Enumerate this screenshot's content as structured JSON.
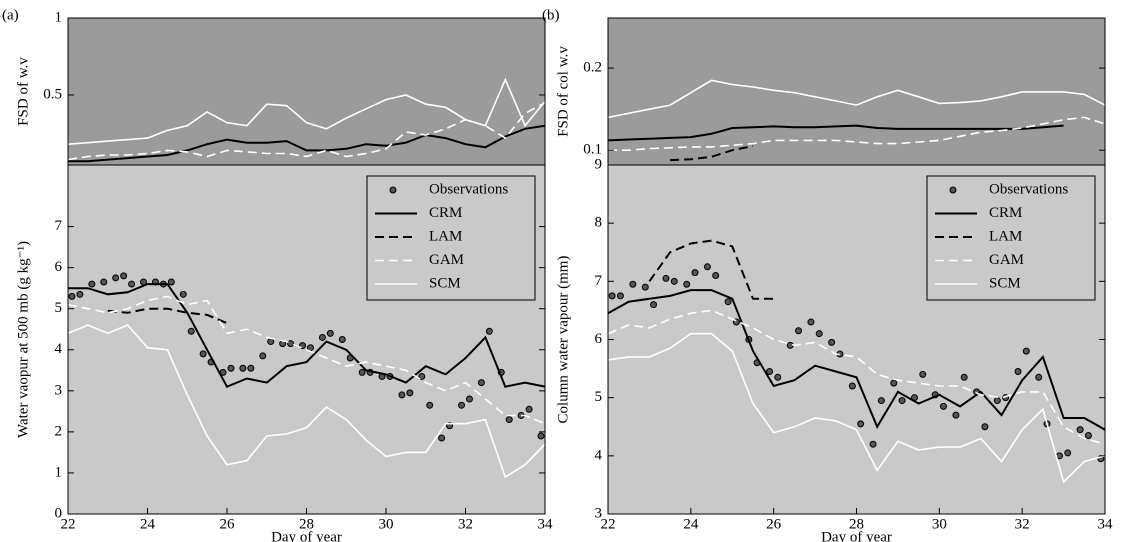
{
  "chart_data": [
    {
      "type": "line",
      "panel_label": "(a)",
      "ylabel": "FSD of w.v",
      "xlim": [
        22,
        34
      ],
      "ylim": [
        0.045,
        1
      ],
      "yticks": [
        0.5,
        1
      ],
      "background": "#9b9b9b",
      "x": [
        22,
        22.5,
        23,
        23.5,
        24,
        24.5,
        25,
        25.5,
        26,
        26.5,
        27,
        27.5,
        28,
        28.5,
        29,
        29.5,
        30,
        30.5,
        31,
        31.5,
        32,
        32.5,
        33,
        33.5,
        34
      ],
      "series": [
        {
          "color": "#000000",
          "dash": false,
          "values": [
            0.07,
            0.07,
            0.08,
            0.09,
            0.1,
            0.11,
            0.14,
            0.18,
            0.21,
            0.19,
            0.19,
            0.2,
            0.14,
            0.14,
            0.15,
            0.18,
            0.17,
            0.19,
            0.24,
            0.22,
            0.18,
            0.16,
            0.23,
            0.28,
            0.3
          ]
        },
        {
          "color": "#ffffff",
          "dash": true,
          "values": [
            0.08,
            0.1,
            0.11,
            0.11,
            0.12,
            0.14,
            0.13,
            0.1,
            0.14,
            0.13,
            0.12,
            0.12,
            0.1,
            0.14,
            0.1,
            0.12,
            0.15,
            0.26,
            0.24,
            0.28,
            0.34,
            0.3,
            0.22,
            0.38,
            0.45
          ]
        },
        {
          "color": "#ffffff",
          "dash": false,
          "values": [
            0.18,
            0.19,
            0.2,
            0.21,
            0.22,
            0.27,
            0.3,
            0.39,
            0.32,
            0.3,
            0.44,
            0.43,
            0.32,
            0.28,
            0.35,
            0.41,
            0.47,
            0.5,
            0.44,
            0.42,
            0.34,
            0.3,
            0.6,
            0.3,
            0.46
          ]
        }
      ]
    },
    {
      "type": "line",
      "ylabel": "Water vaopur at 500 mb (g kg⁻¹)",
      "xlabel": "Day of year",
      "xlim": [
        22,
        34
      ],
      "xticks": [
        22,
        24,
        26,
        28,
        30,
        32,
        34
      ],
      "ylim": [
        0,
        8.5
      ],
      "yticks": [
        0,
        1,
        2,
        3,
        4,
        5,
        6,
        7
      ],
      "background": "#c9c9c9",
      "legend": "upper right",
      "x": [
        22,
        22.5,
        23,
        23.5,
        24,
        24.5,
        25,
        25.5,
        26,
        26.5,
        27,
        27.5,
        28,
        28.5,
        29,
        29.5,
        30,
        30.5,
        31,
        31.5,
        32,
        32.5,
        33,
        33.5,
        34
      ],
      "series": [
        {
          "name": "Observations",
          "color": "#555555",
          "marker": "dot",
          "x": [
            22.1,
            22.3,
            22.6,
            22.9,
            23.2,
            23.4,
            23.6,
            23.9,
            24.2,
            24.4,
            24.6,
            24.9,
            25.1,
            25.4,
            25.6,
            25.9,
            26.1,
            26.4,
            26.6,
            26.9,
            27.1,
            27.4,
            27.6,
            27.9,
            28.1,
            28.4,
            28.6,
            28.9,
            29.1,
            29.4,
            29.6,
            29.9,
            30.1,
            30.4,
            30.6,
            30.9,
            31.1,
            31.4,
            31.6,
            31.9,
            32.1,
            32.4,
            32.6,
            32.9,
            33.1,
            33.4,
            33.6,
            33.9
          ],
          "values": [
            5.3,
            5.35,
            5.6,
            5.65,
            5.75,
            5.8,
            5.6,
            5.65,
            5.65,
            5.6,
            5.65,
            5.35,
            4.45,
            3.9,
            3.7,
            3.45,
            3.55,
            3.55,
            3.55,
            3.85,
            4.2,
            4.15,
            4.15,
            4.1,
            4.05,
            4.3,
            4.4,
            4.25,
            3.8,
            3.45,
            3.45,
            3.35,
            3.35,
            2.9,
            2.95,
            3.35,
            2.65,
            1.85,
            2.15,
            2.65,
            2.8,
            3.2,
            4.45,
            3.45,
            2.3,
            2.4,
            2.55,
            1.9
          ]
        },
        {
          "name": "CRM",
          "color": "#000000",
          "dash": false,
          "values": [
            5.5,
            5.5,
            5.35,
            5.4,
            5.6,
            5.6,
            4.9,
            4.0,
            3.1,
            3.3,
            3.2,
            3.6,
            3.7,
            4.2,
            4.0,
            3.5,
            3.4,
            3.2,
            3.6,
            3.4,
            3.8,
            4.3,
            3.1,
            3.2,
            3.1
          ]
        },
        {
          "name": "LAM",
          "color": "#000000",
          "dash": true,
          "values": [
            null,
            null,
            4.95,
            4.9,
            5.0,
            5.0,
            4.9,
            4.85,
            4.65,
            null,
            null,
            null,
            null,
            null,
            null,
            null,
            null,
            null,
            null,
            null,
            null,
            null,
            null,
            null,
            null
          ]
        },
        {
          "name": "GAM",
          "color": "#ffffff",
          "dash": true,
          "values": [
            5.1,
            5.0,
            4.9,
            5.0,
            5.2,
            5.3,
            5.1,
            5.2,
            4.4,
            4.5,
            4.3,
            4.2,
            4.0,
            3.8,
            3.6,
            3.7,
            3.6,
            3.5,
            3.2,
            3.0,
            3.2,
            2.8,
            2.4,
            2.4,
            2.2
          ]
        },
        {
          "name": "SCM",
          "color": "#ffffff",
          "dash": false,
          "values": [
            4.4,
            4.6,
            4.4,
            4.6,
            4.05,
            4.0,
            2.9,
            1.9,
            1.2,
            1.3,
            1.9,
            1.95,
            2.1,
            2.6,
            2.3,
            1.8,
            1.4,
            1.5,
            1.5,
            2.2,
            2.2,
            2.3,
            0.9,
            1.2,
            1.7
          ]
        }
      ]
    },
    {
      "type": "line",
      "panel_label": "(b)",
      "ylabel": "FSD of col w.v",
      "xlim": [
        22,
        34
      ],
      "ylim": [
        0.082,
        0.261
      ],
      "yticks": [
        0.1,
        0.2
      ],
      "background": "#9b9b9b",
      "x": [
        22,
        22.5,
        23,
        23.5,
        24,
        24.5,
        25,
        25.5,
        26,
        26.5,
        27,
        27.5,
        28,
        28.5,
        29,
        29.5,
        30,
        30.5,
        31,
        31.5,
        32,
        32.5,
        33,
        33.5,
        34
      ],
      "series": [
        {
          "color": "#000000",
          "dash": false,
          "values": [
            0.112,
            0.113,
            0.114,
            0.115,
            0.116,
            0.12,
            0.127,
            0.128,
            0.129,
            0.128,
            0.128,
            0.129,
            0.13,
            0.127,
            0.126,
            0.126,
            0.126,
            0.126,
            0.126,
            0.126,
            0.126,
            0.128,
            0.13,
            null,
            null
          ]
        },
        {
          "color": "#000000",
          "dash": true,
          "values": [
            null,
            null,
            null,
            0.088,
            0.089,
            0.092,
            0.1,
            0.105,
            null,
            null,
            null,
            null,
            null,
            null,
            null,
            null,
            null,
            null,
            null,
            null,
            null,
            null,
            null,
            null,
            null
          ]
        },
        {
          "color": "#ffffff",
          "dash": true,
          "values": [
            0.1,
            0.1,
            0.102,
            0.103,
            0.104,
            0.104,
            0.106,
            0.108,
            0.112,
            0.112,
            0.112,
            0.112,
            0.11,
            0.108,
            0.108,
            0.11,
            0.112,
            0.117,
            0.122,
            0.124,
            0.127,
            0.132,
            0.137,
            0.14,
            0.132
          ]
        },
        {
          "color": "#ffffff",
          "dash": false,
          "values": [
            0.14,
            0.145,
            0.15,
            0.155,
            0.17,
            0.185,
            0.18,
            0.177,
            0.173,
            0.17,
            0.165,
            0.16,
            0.155,
            0.165,
            0.173,
            0.165,
            0.157,
            0.158,
            0.16,
            0.165,
            0.171,
            0.171,
            0.171,
            0.168,
            0.155
          ]
        }
      ]
    },
    {
      "type": "line",
      "ylabel": "Column water vapour (mm)",
      "xlabel": "Day of year",
      "xlim": [
        22,
        34
      ],
      "xticks": [
        22,
        24,
        26,
        28,
        30,
        32,
        34
      ],
      "ylim": [
        3,
        9
      ],
      "yticks": [
        3,
        4,
        5,
        6,
        7,
        8,
        9
      ],
      "background": "#c9c9c9",
      "legend": "upper right",
      "x": [
        22,
        22.5,
        23,
        23.5,
        24,
        24.5,
        25,
        25.5,
        26,
        26.5,
        27,
        27.5,
        28,
        28.5,
        29,
        29.5,
        30,
        30.5,
        31,
        31.5,
        32,
        32.5,
        33,
        33.5,
        34
      ],
      "series": [
        {
          "name": "Observations",
          "color": "#555555",
          "marker": "dot",
          "x": [
            22.1,
            22.3,
            22.6,
            22.9,
            23.1,
            23.4,
            23.6,
            23.9,
            24.1,
            24.4,
            24.6,
            24.9,
            25.1,
            25.4,
            25.6,
            25.9,
            26.1,
            26.4,
            26.6,
            26.9,
            27.1,
            27.4,
            27.6,
            27.9,
            28.1,
            28.4,
            28.6,
            28.9,
            29.1,
            29.4,
            29.6,
            29.9,
            30.1,
            30.4,
            30.6,
            30.9,
            31.1,
            31.4,
            31.6,
            31.9,
            32.1,
            32.4,
            32.6,
            32.9,
            33.1,
            33.4,
            33.6,
            33.9
          ],
          "values": [
            6.75,
            6.75,
            6.95,
            6.9,
            6.6,
            7.05,
            7.0,
            6.95,
            7.15,
            7.25,
            7.1,
            6.65,
            6.3,
            6.0,
            5.6,
            5.45,
            5.35,
            5.9,
            6.15,
            6.3,
            6.1,
            5.95,
            5.75,
            5.2,
            4.55,
            4.2,
            4.95,
            5.25,
            4.95,
            5.0,
            5.4,
            5.05,
            4.85,
            4.7,
            5.35,
            5.1,
            4.5,
            4.95,
            5.0,
            5.45,
            5.8,
            5.35,
            4.55,
            4.0,
            4.05,
            4.45,
            4.35,
            3.95
          ]
        },
        {
          "name": "CRM",
          "color": "#000000",
          "dash": false,
          "values": [
            6.45,
            6.65,
            6.7,
            6.75,
            6.85,
            6.85,
            6.7,
            5.8,
            5.2,
            5.3,
            5.55,
            5.45,
            5.35,
            4.5,
            5.1,
            4.9,
            5.05,
            4.85,
            5.1,
            4.7,
            5.3,
            5.7,
            4.65,
            4.65,
            4.45
          ]
        },
        {
          "name": "LAM",
          "color": "#000000",
          "dash": true,
          "values": [
            null,
            null,
            7.0,
            7.5,
            7.65,
            7.7,
            7.6,
            6.7,
            6.7,
            null,
            null,
            null,
            null,
            null,
            null,
            null,
            null,
            null,
            null,
            null,
            null,
            null,
            null,
            null,
            null
          ]
        },
        {
          "name": "GAM",
          "color": "#ffffff",
          "dash": true,
          "values": [
            6.1,
            6.25,
            6.2,
            6.35,
            6.45,
            6.5,
            6.35,
            6.2,
            6.0,
            5.9,
            5.95,
            5.75,
            5.7,
            5.4,
            5.3,
            5.25,
            5.2,
            5.2,
            5.05,
            5.0,
            5.1,
            5.1,
            4.5,
            4.3,
            4.2
          ]
        },
        {
          "name": "SCM",
          "color": "#ffffff",
          "dash": false,
          "values": [
            5.65,
            5.7,
            5.7,
            5.85,
            6.1,
            6.1,
            5.8,
            4.9,
            4.4,
            4.5,
            4.65,
            4.6,
            4.45,
            3.75,
            4.25,
            4.1,
            4.15,
            4.15,
            4.3,
            3.9,
            4.45,
            4.8,
            3.55,
            3.9,
            4.0
          ]
        }
      ]
    }
  ]
}
